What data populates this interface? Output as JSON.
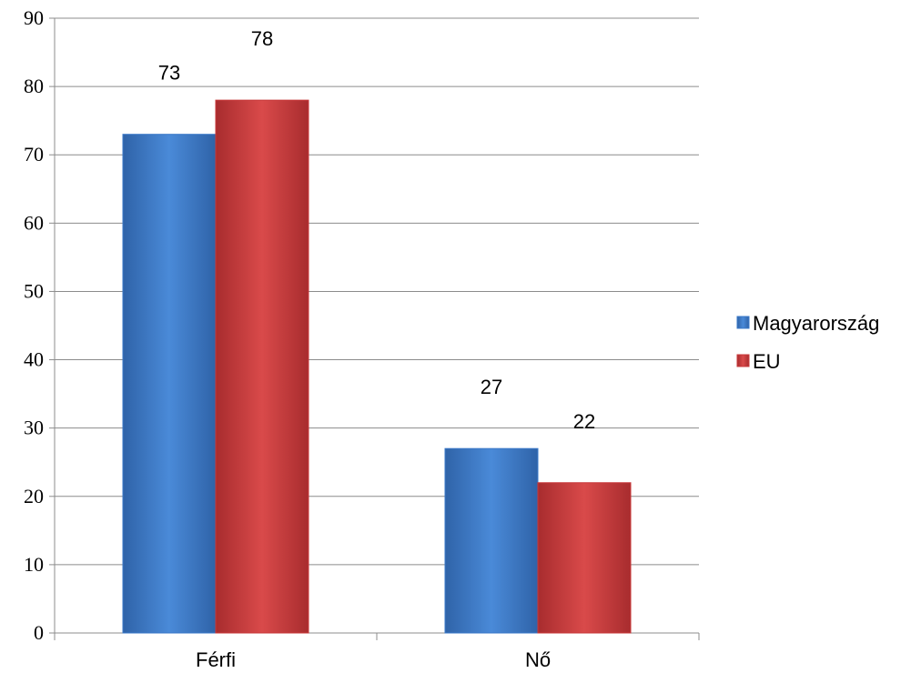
{
  "chart_data": {
    "type": "bar",
    "title": "",
    "xlabel": "",
    "ylabel": "",
    "categories": [
      "Férfi",
      "Nő"
    ],
    "series": [
      {
        "name": "Magyarország",
        "values": [
          73,
          27
        ],
        "color": "#3a78c8"
      },
      {
        "name": "EU",
        "values": [
          78,
          22
        ],
        "color": "#c8383a"
      }
    ],
    "ylim": [
      0,
      90
    ],
    "yticks": [
      0,
      10,
      20,
      30,
      40,
      50,
      60,
      70,
      80,
      90
    ],
    "grid": true,
    "legend_position": "right",
    "data_labels": true
  }
}
